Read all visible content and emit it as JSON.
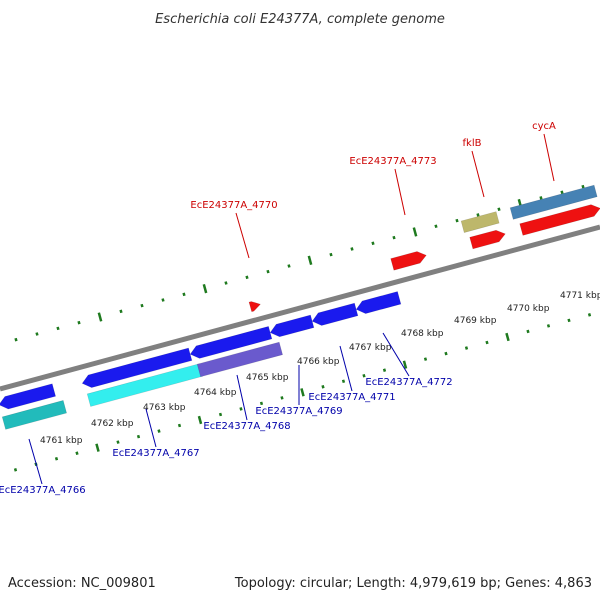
{
  "title": "Escherichia coli E24377A, complete genome",
  "footer": {
    "accession": "Accession: NC_009801",
    "summary": "Topology: circular; Length: 4,979,619 bp; Genes: 4,863"
  },
  "colors": {
    "backbone": "#808080",
    "ticks": "#1f7a1f",
    "label_forward": "#cc0000",
    "label_reverse": "#0000aa"
  },
  "ticks": [
    {
      "label": "4761 kbp",
      "kbp": 4761
    },
    {
      "label": "4762 kbp",
      "kbp": 4762
    },
    {
      "label": "4763 kbp",
      "kbp": 4763
    },
    {
      "label": "4764 kbp",
      "kbp": 4764
    },
    {
      "label": "4765 kbp",
      "kbp": 4765
    },
    {
      "label": "4766 kbp",
      "kbp": 4766
    },
    {
      "label": "4767 kbp",
      "kbp": 4767
    },
    {
      "label": "4768 kbp",
      "kbp": 4768
    },
    {
      "label": "4769 kbp",
      "kbp": 4769
    },
    {
      "label": "4770 kbp",
      "kbp": 4770
    },
    {
      "label": "4771 kbp",
      "kbp": 4771
    }
  ],
  "genes_forward": [
    {
      "name": "EcE24377A_4770",
      "color": "#ee1111"
    },
    {
      "name": "EcE24377A_4773",
      "color": "#ee1111"
    },
    {
      "name": "fklB",
      "color": "#ee1111"
    },
    {
      "name": "cycA",
      "color": "#ee1111"
    }
  ],
  "genes_reverse": [
    {
      "name": "EcE24377A_4766",
      "color": "#1111dd"
    },
    {
      "name": "EcE24377A_4767",
      "color": "#1111dd"
    },
    {
      "name": "EcE24377A_4768",
      "color": "#1111dd"
    },
    {
      "name": "EcE24377A_4769",
      "color": "#1111dd"
    },
    {
      "name": "EcE24377A_4771",
      "color": "#1111dd"
    },
    {
      "name": "EcE24377A_4772",
      "color": "#1111dd"
    }
  ]
}
